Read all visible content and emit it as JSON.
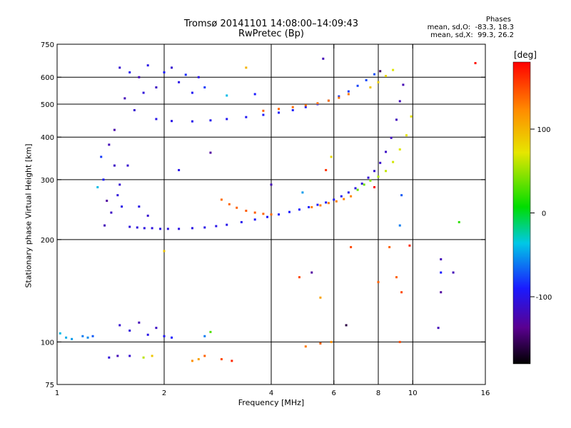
{
  "figure": {
    "title": "Tromsø 20141101 14:08:00–14:09:43",
    "subtitle": "RwPretec (Bp)",
    "phases": {
      "title": "Phases",
      "o_line": "mean, sd,O:  -83.3, 18.3",
      "x_line": "mean, sd,X:  99.3, 26.2"
    },
    "colorbar": {
      "unit_label": "[deg]",
      "ticks": [
        {
          "value": 100,
          "label": "100"
        },
        {
          "value": 0,
          "label": "0"
        },
        {
          "value": -100,
          "label": "-100"
        }
      ],
      "range": [
        -180,
        180
      ]
    }
  },
  "chart_data": {
    "type": "scatter",
    "xlabel": "Frequency [MHz]",
    "ylabel": "Stationary phase Virtual Height [km]",
    "xscale": "log",
    "yscale": "log",
    "xlim": [
      1,
      16
    ],
    "ylim": [
      75,
      750
    ],
    "xticks": [
      {
        "value": 1,
        "label": "1"
      },
      {
        "value": 2,
        "label": "2"
      },
      {
        "value": 4,
        "label": "4"
      },
      {
        "value": 6,
        "label": "6"
      },
      {
        "value": 8,
        "label": "8"
      },
      {
        "value": 10,
        "label": "10"
      },
      {
        "value": 16,
        "label": "16"
      }
    ],
    "yticks": [
      {
        "value": 75,
        "label": "75"
      },
      {
        "value": 100,
        "label": "100"
      },
      {
        "value": 200,
        "label": "200"
      },
      {
        "value": 300,
        "label": "300"
      },
      {
        "value": 400,
        "label": "400"
      },
      {
        "value": 500,
        "label": "500"
      },
      {
        "value": 600,
        "label": "600"
      },
      {
        "value": 750,
        "label": "750"
      }
    ],
    "grid_x": [
      2,
      4,
      6,
      8,
      10
    ],
    "grid_y": [
      100,
      200,
      300,
      400,
      500,
      600
    ],
    "color_key": "phase in degrees",
    "points": [
      {
        "f": 1.6,
        "h": 218,
        "p": -105
      },
      {
        "f": 1.68,
        "h": 217,
        "p": -105
      },
      {
        "f": 1.76,
        "h": 216,
        "p": -104
      },
      {
        "f": 1.85,
        "h": 216,
        "p": -104
      },
      {
        "f": 1.95,
        "h": 215,
        "p": -103
      },
      {
        "f": 2.05,
        "h": 215,
        "p": -103
      },
      {
        "f": 2.2,
        "h": 215,
        "p": -102
      },
      {
        "f": 2.4,
        "h": 216,
        "p": -102
      },
      {
        "f": 2.6,
        "h": 217,
        "p": -101
      },
      {
        "f": 2.8,
        "h": 219,
        "p": -100
      },
      {
        "f": 3.0,
        "h": 221,
        "p": -99
      },
      {
        "f": 3.3,
        "h": 225,
        "p": -97
      },
      {
        "f": 3.6,
        "h": 229,
        "p": -95
      },
      {
        "f": 3.9,
        "h": 233,
        "p": -93
      },
      {
        "f": 4.2,
        "h": 237,
        "p": -92
      },
      {
        "f": 4.5,
        "h": 241,
        "p": -90
      },
      {
        "f": 4.8,
        "h": 245,
        "p": -90
      },
      {
        "f": 5.1,
        "h": 249,
        "p": -91
      },
      {
        "f": 5.4,
        "h": 253,
        "p": -92
      },
      {
        "f": 5.7,
        "h": 257,
        "p": -93
      },
      {
        "f": 6.0,
        "h": 262,
        "p": -95
      },
      {
        "f": 6.3,
        "h": 268,
        "p": -97
      },
      {
        "f": 6.6,
        "h": 275,
        "p": -100
      },
      {
        "f": 6.9,
        "h": 283,
        "p": -103
      },
      {
        "f": 7.2,
        "h": 292,
        "p": -106
      },
      {
        "f": 7.5,
        "h": 304,
        "p": -108
      },
      {
        "f": 7.8,
        "h": 318,
        "p": -110
      },
      {
        "f": 8.1,
        "h": 336,
        "p": -112
      },
      {
        "f": 8.4,
        "h": 362,
        "p": -114
      },
      {
        "f": 8.7,
        "h": 398,
        "p": -116
      },
      {
        "f": 9.0,
        "h": 450,
        "p": -118
      },
      {
        "f": 9.2,
        "h": 510,
        "p": -120
      },
      {
        "f": 9.4,
        "h": 570,
        "p": -121
      },
      {
        "f": 2.9,
        "h": 262,
        "p": 135
      },
      {
        "f": 3.05,
        "h": 254,
        "p": 138
      },
      {
        "f": 3.2,
        "h": 248,
        "p": 140
      },
      {
        "f": 3.4,
        "h": 243,
        "p": 142
      },
      {
        "f": 3.6,
        "h": 240,
        "p": 142
      },
      {
        "f": 3.8,
        "h": 238,
        "p": 140
      },
      {
        "f": 4.0,
        "h": 237,
        "p": 138
      },
      {
        "f": 5.2,
        "h": 249,
        "p": 130
      },
      {
        "f": 5.5,
        "h": 252,
        "p": 128
      },
      {
        "f": 5.8,
        "h": 256,
        "p": 128
      },
      {
        "f": 6.1,
        "h": 259,
        "p": 127
      },
      {
        "f": 6.4,
        "h": 263,
        "p": 126
      },
      {
        "f": 6.7,
        "h": 268,
        "p": 125
      },
      {
        "f": 7.0,
        "h": 280,
        "p": 35
      },
      {
        "f": 7.3,
        "h": 290,
        "p": 38
      },
      {
        "f": 7.6,
        "h": 298,
        "p": 45
      },
      {
        "f": 8.0,
        "h": 306,
        "p": 55
      },
      {
        "f": 8.4,
        "h": 318,
        "p": 62
      },
      {
        "f": 8.8,
        "h": 338,
        "p": 66
      },
      {
        "f": 9.2,
        "h": 368,
        "p": 70
      },
      {
        "f": 9.6,
        "h": 405,
        "p": 72
      },
      {
        "f": 9.9,
        "h": 460,
        "p": 74
      },
      {
        "f": 1.9,
        "h": 452,
        "p": -100
      },
      {
        "f": 2.1,
        "h": 446,
        "p": -100
      },
      {
        "f": 2.4,
        "h": 445,
        "p": -98
      },
      {
        "f": 2.7,
        "h": 448,
        "p": -97
      },
      {
        "f": 3.0,
        "h": 452,
        "p": -96
      },
      {
        "f": 3.4,
        "h": 458,
        "p": -95
      },
      {
        "f": 3.8,
        "h": 465,
        "p": -93
      },
      {
        "f": 4.2,
        "h": 472,
        "p": -92
      },
      {
        "f": 4.6,
        "h": 480,
        "p": -90
      },
      {
        "f": 5.0,
        "h": 490,
        "p": -88
      },
      {
        "f": 5.4,
        "h": 500,
        "p": -86
      },
      {
        "f": 5.8,
        "h": 512,
        "p": -84
      },
      {
        "f": 6.2,
        "h": 527,
        "p": -82
      },
      {
        "f": 6.6,
        "h": 545,
        "p": -80
      },
      {
        "f": 7.0,
        "h": 566,
        "p": -78
      },
      {
        "f": 7.4,
        "h": 588,
        "p": -76
      },
      {
        "f": 7.8,
        "h": 612,
        "p": -74
      },
      {
        "f": 3.8,
        "h": 478,
        "p": 140
      },
      {
        "f": 4.2,
        "h": 484,
        "p": 138
      },
      {
        "f": 4.6,
        "h": 490,
        "p": 136
      },
      {
        "f": 5.0,
        "h": 496,
        "p": 135
      },
      {
        "f": 5.4,
        "h": 503,
        "p": 134
      },
      {
        "f": 5.8,
        "h": 512,
        "p": 133
      },
      {
        "f": 6.2,
        "h": 522,
        "p": 132
      },
      {
        "f": 6.6,
        "h": 535,
        "p": 131
      },
      {
        "f": 7.6,
        "h": 560,
        "p": 90
      },
      {
        "f": 8.0,
        "h": 580,
        "p": 85
      },
      {
        "f": 8.4,
        "h": 605,
        "p": 80
      },
      {
        "f": 8.8,
        "h": 630,
        "p": 70
      },
      {
        "f": 1.5,
        "h": 640,
        "p": -110
      },
      {
        "f": 1.6,
        "h": 620,
        "p": -95
      },
      {
        "f": 1.7,
        "h": 600,
        "p": -120
      },
      {
        "f": 1.8,
        "h": 650,
        "p": -100
      },
      {
        "f": 1.9,
        "h": 560,
        "p": -115
      },
      {
        "f": 2.0,
        "h": 620,
        "p": -90
      },
      {
        "f": 2.1,
        "h": 640,
        "p": -110
      },
      {
        "f": 2.2,
        "h": 580,
        "p": -100
      },
      {
        "f": 2.3,
        "h": 610,
        "p": -85
      },
      {
        "f": 2.4,
        "h": 540,
        "p": -95
      },
      {
        "f": 2.5,
        "h": 600,
        "p": -100
      },
      {
        "f": 2.6,
        "h": 560,
        "p": -80
      },
      {
        "f": 1.55,
        "h": 520,
        "p": -120
      },
      {
        "f": 1.65,
        "h": 480,
        "p": -110
      },
      {
        "f": 1.75,
        "h": 540,
        "p": -105
      },
      {
        "f": 1.4,
        "h": 380,
        "p": -120
      },
      {
        "f": 1.45,
        "h": 330,
        "p": -115
      },
      {
        "f": 1.5,
        "h": 290,
        "p": -110
      },
      {
        "f": 1.35,
        "h": 300,
        "p": -90
      },
      {
        "f": 1.38,
        "h": 260,
        "p": -130
      },
      {
        "f": 1.42,
        "h": 240,
        "p": -115
      },
      {
        "f": 1.48,
        "h": 270,
        "p": -105
      },
      {
        "f": 1.52,
        "h": 250,
        "p": -100
      },
      {
        "f": 1.36,
        "h": 220,
        "p": -120
      },
      {
        "f": 1.3,
        "h": 285,
        "p": -40
      },
      {
        "f": 1.33,
        "h": 350,
        "p": -80
      },
      {
        "f": 1.58,
        "h": 330,
        "p": -110
      },
      {
        "f": 1.7,
        "h": 250,
        "p": -100
      },
      {
        "f": 1.8,
        "h": 235,
        "p": -110
      },
      {
        "f": 1.45,
        "h": 420,
        "p": -125
      },
      {
        "f": 1.02,
        "h": 106,
        "p": -40
      },
      {
        "f": 1.06,
        "h": 103,
        "p": -45
      },
      {
        "f": 1.1,
        "h": 102,
        "p": -50
      },
      {
        "f": 1.18,
        "h": 104,
        "p": -60
      },
      {
        "f": 1.22,
        "h": 103,
        "p": -55
      },
      {
        "f": 1.26,
        "h": 104,
        "p": -70
      },
      {
        "f": 1.5,
        "h": 112,
        "p": -110
      },
      {
        "f": 1.6,
        "h": 108,
        "p": -105
      },
      {
        "f": 1.7,
        "h": 114,
        "p": -120
      },
      {
        "f": 1.8,
        "h": 105,
        "p": -100
      },
      {
        "f": 1.9,
        "h": 110,
        "p": -115
      },
      {
        "f": 2.0,
        "h": 104,
        "p": -95
      },
      {
        "f": 2.1,
        "h": 103,
        "p": -90
      },
      {
        "f": 1.4,
        "h": 90,
        "p": -105
      },
      {
        "f": 1.48,
        "h": 91,
        "p": -120
      },
      {
        "f": 1.6,
        "h": 91,
        "p": -110
      },
      {
        "f": 1.75,
        "h": 90,
        "p": 60
      },
      {
        "f": 1.85,
        "h": 91,
        "p": 90
      },
      {
        "f": 2.4,
        "h": 88,
        "p": 120
      },
      {
        "f": 2.5,
        "h": 89,
        "p": 110
      },
      {
        "f": 2.6,
        "h": 91,
        "p": 140
      },
      {
        "f": 2.9,
        "h": 89,
        "p": 150
      },
      {
        "f": 3.1,
        "h": 88,
        "p": 165
      },
      {
        "f": 2.6,
        "h": 104,
        "p": -60
      },
      {
        "f": 2.7,
        "h": 107,
        "p": 30
      },
      {
        "f": 3.4,
        "h": 640,
        "p": 100
      },
      {
        "f": 3.0,
        "h": 530,
        "p": -40
      },
      {
        "f": 3.6,
        "h": 535,
        "p": -90
      },
      {
        "f": 5.6,
        "h": 680,
        "p": -120
      },
      {
        "f": 15.0,
        "h": 660,
        "p": 175
      },
      {
        "f": 5.9,
        "h": 350,
        "p": 80
      },
      {
        "f": 5.7,
        "h": 320,
        "p": 160
      },
      {
        "f": 4.0,
        "h": 290,
        "p": -120
      },
      {
        "f": 4.9,
        "h": 275,
        "p": -50
      },
      {
        "f": 6.7,
        "h": 190,
        "p": 150
      },
      {
        "f": 8.6,
        "h": 190,
        "p": 140
      },
      {
        "f": 9.8,
        "h": 192,
        "p": 165
      },
      {
        "f": 9.2,
        "h": 220,
        "p": -60
      },
      {
        "f": 12.0,
        "h": 175,
        "p": -120
      },
      {
        "f": 12.0,
        "h": 160,
        "p": -90
      },
      {
        "f": 13.0,
        "h": 160,
        "p": -120
      },
      {
        "f": 12.0,
        "h": 140,
        "p": -130
      },
      {
        "f": 11.8,
        "h": 110,
        "p": -120
      },
      {
        "f": 13.5,
        "h": 225,
        "p": 20
      },
      {
        "f": 8.0,
        "h": 150,
        "p": 140
      },
      {
        "f": 4.8,
        "h": 155,
        "p": 150
      },
      {
        "f": 5.2,
        "h": 160,
        "p": -130
      },
      {
        "f": 5.5,
        "h": 135,
        "p": 110
      },
      {
        "f": 5.0,
        "h": 97,
        "p": 130
      },
      {
        "f": 5.5,
        "h": 99,
        "p": 140
      },
      {
        "f": 5.9,
        "h": 100,
        "p": 120
      },
      {
        "f": 9.2,
        "h": 100,
        "p": 150
      },
      {
        "f": 9.3,
        "h": 140,
        "p": 150
      },
      {
        "f": 9.0,
        "h": 155,
        "p": 140
      },
      {
        "f": 2.0,
        "h": 185,
        "p": 90
      },
      {
        "f": 2.7,
        "h": 360,
        "p": -130
      },
      {
        "f": 2.2,
        "h": 320,
        "p": -100
      },
      {
        "f": 9.3,
        "h": 270,
        "p": -70
      },
      {
        "f": 7.8,
        "h": 285,
        "p": 180
      },
      {
        "f": 6.5,
        "h": 112,
        "p": -160
      },
      {
        "f": 8.1,
        "h": 625,
        "p": -150
      }
    ]
  }
}
